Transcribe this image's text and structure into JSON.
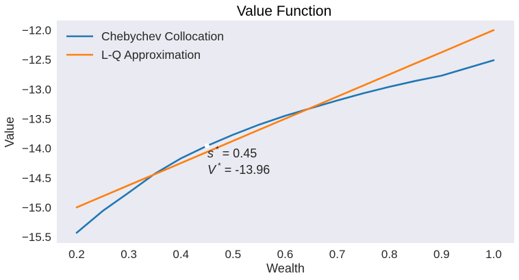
{
  "chart_data": {
    "type": "line",
    "title": "Value Function",
    "xlabel": "Wealth",
    "ylabel": "Value",
    "xlim": [
      0.16,
      1.04
    ],
    "ylim": [
      -15.6,
      -11.82
    ],
    "grid": false,
    "background": "#eaeaf2",
    "legend_position": "upper left",
    "xticks": [
      0.2,
      0.3,
      0.4,
      0.5,
      0.6,
      0.7,
      0.8,
      0.9,
      1.0
    ],
    "xtick_labels": [
      "0.2",
      "0.3",
      "0.4",
      "0.5",
      "0.6",
      "0.7",
      "0.8",
      "0.9",
      "1.0"
    ],
    "yticks": [
      -12.0,
      -12.5,
      -13.0,
      -13.5,
      -14.0,
      -14.5,
      -15.0,
      -15.5
    ],
    "ytick_labels": [
      "−12.0",
      "−12.5",
      "−13.0",
      "−13.5",
      "−14.0",
      "−14.5",
      "−15.0",
      "−15.5"
    ],
    "x": [
      0.2,
      0.25,
      0.3,
      0.35,
      0.4,
      0.45,
      0.5,
      0.55,
      0.6,
      0.65,
      0.7,
      0.75,
      0.8,
      0.85,
      0.9,
      0.95,
      1.0
    ],
    "series": [
      {
        "name": "Chebychev Collocation",
        "color": "#1f77b4",
        "values": [
          -15.43,
          -15.06,
          -14.75,
          -14.43,
          -14.17,
          -13.96,
          -13.77,
          -13.6,
          -13.45,
          -13.32,
          -13.19,
          -13.07,
          -12.96,
          -12.86,
          -12.77,
          -12.64,
          -12.51
        ]
      },
      {
        "name": "L-Q Approximation",
        "color": "#ff7f0e",
        "values": [
          -15.0,
          -14.8125,
          -14.625,
          -14.4375,
          -14.25,
          -14.0625,
          -13.875,
          -13.6875,
          -13.5,
          -13.3125,
          -13.125,
          -12.9375,
          -12.75,
          -12.5625,
          -12.375,
          -12.1875,
          -12.0
        ]
      }
    ],
    "annotations": [
      {
        "text_var": "s",
        "text_sup": "*",
        "text_rest": " = 0.45",
        "x": 0.45,
        "y": -13.96
      },
      {
        "text_var": "V",
        "text_sup": "*",
        "text_rest": " = -13.96",
        "x": 0.45,
        "y": -13.96
      }
    ],
    "marker": {
      "x": 0.45,
      "y": -13.96,
      "color": "#ffffff"
    }
  }
}
